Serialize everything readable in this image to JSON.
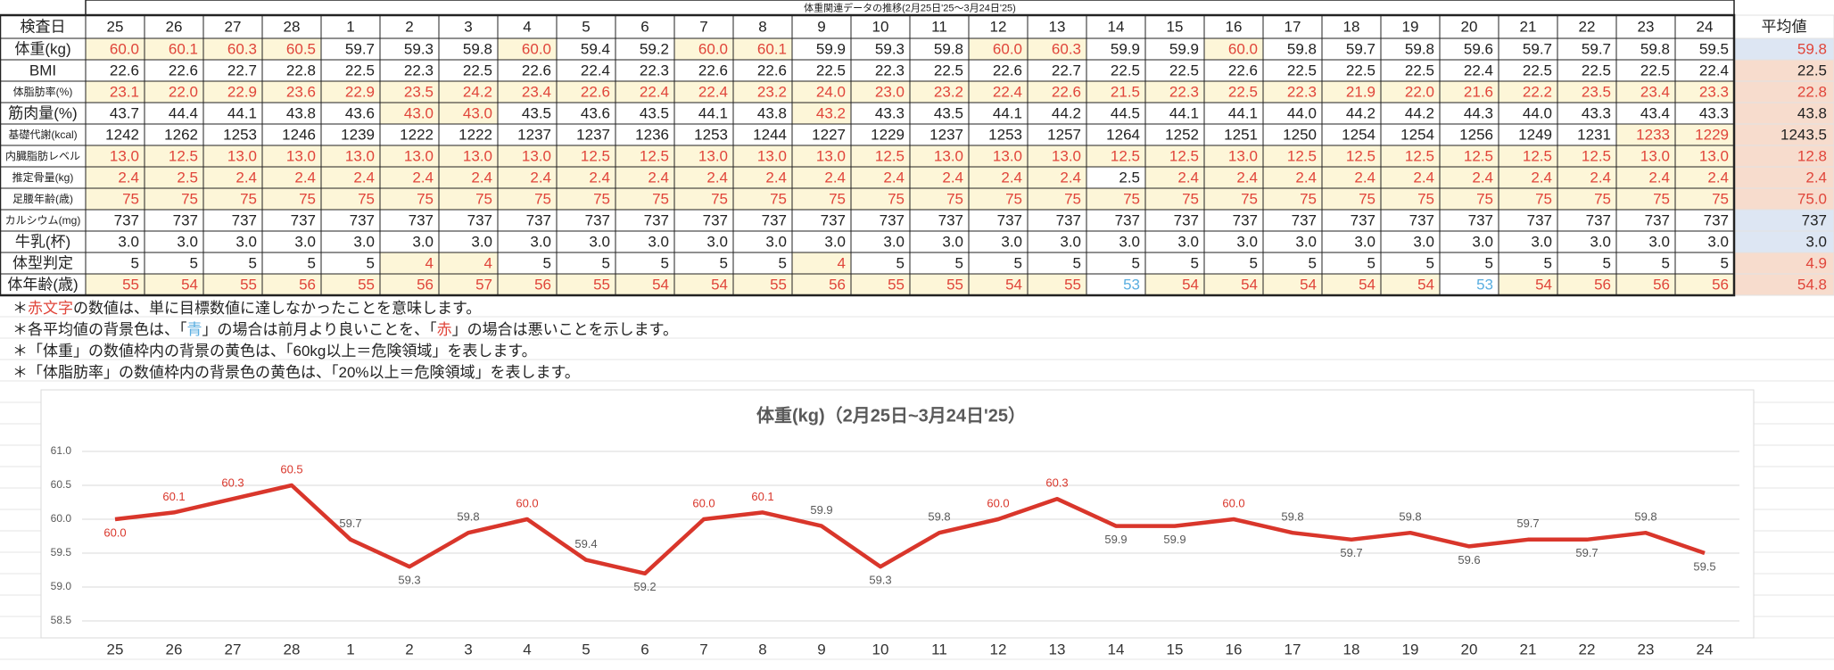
{
  "table": {
    "title": "体重関連データの推移(2月25日'25〜3月24日'25)",
    "header": {
      "label": "検査日",
      "dates": [
        "25",
        "26",
        "27",
        "28",
        "1",
        "2",
        "3",
        "4",
        "5",
        "6",
        "7",
        "8",
        "9",
        "10",
        "11",
        "12",
        "13",
        "14",
        "15",
        "16",
        "17",
        "18",
        "19",
        "20",
        "21",
        "22",
        "23",
        "24"
      ],
      "average": "平均値"
    },
    "highlight_color": "#e0453a",
    "highlight_fill": "#fdf6d8",
    "blue_color": "#5aaee0",
    "rows": [
      {
        "label": "体重(kg)",
        "values": [
          "60.0",
          "60.1",
          "60.3",
          "60.5",
          "59.7",
          "59.3",
          "59.8",
          "60.0",
          "59.4",
          "59.2",
          "60.0",
          "60.1",
          "59.9",
          "59.3",
          "59.8",
          "60.0",
          "60.3",
          "59.9",
          "59.9",
          "60.0",
          "59.8",
          "59.7",
          "59.8",
          "59.6",
          "59.7",
          "59.7",
          "59.8",
          "59.5"
        ],
        "average": "59.8",
        "average_fill": "#dde6f3",
        "average_color": "#e0453a",
        "highlight_cells": [
          0,
          1,
          2,
          3,
          7,
          10,
          11,
          15,
          16,
          19
        ],
        "blue_cells": []
      },
      {
        "label": "BMI",
        "values": [
          "22.6",
          "22.6",
          "22.7",
          "22.8",
          "22.5",
          "22.3",
          "22.5",
          "22.6",
          "22.4",
          "22.3",
          "22.6",
          "22.6",
          "22.5",
          "22.3",
          "22.5",
          "22.6",
          "22.7",
          "22.5",
          "22.5",
          "22.6",
          "22.5",
          "22.5",
          "22.5",
          "22.4",
          "22.5",
          "22.5",
          "22.5",
          "22.4"
        ],
        "average": "22.5",
        "average_fill": "#f7dccd",
        "average_color": "#222222",
        "highlight_cells": [],
        "blue_cells": []
      },
      {
        "label": "体脂肪率(%)",
        "values": [
          "23.1",
          "22.0",
          "22.9",
          "23.6",
          "22.9",
          "23.5",
          "24.2",
          "23.4",
          "22.6",
          "22.4",
          "22.4",
          "23.2",
          "24.0",
          "23.0",
          "23.2",
          "22.4",
          "22.6",
          "21.5",
          "22.3",
          "22.5",
          "22.3",
          "21.9",
          "22.0",
          "21.6",
          "22.2",
          "23.5",
          "23.4",
          "23.3"
        ],
        "average": "22.8",
        "average_fill": "#f7dccd",
        "average_color": "#e0453a",
        "highlight_cells": [
          0,
          1,
          2,
          3,
          4,
          5,
          6,
          7,
          8,
          9,
          10,
          11,
          12,
          13,
          14,
          15,
          16,
          17,
          18,
          19,
          20,
          21,
          22,
          23,
          24,
          25,
          26,
          27
        ],
        "blue_cells": []
      },
      {
        "label": "筋肉量(%)",
        "values": [
          "43.7",
          "44.4",
          "44.1",
          "43.8",
          "43.6",
          "43.0",
          "43.0",
          "43.5",
          "43.6",
          "43.5",
          "44.1",
          "43.8",
          "43.2",
          "43.3",
          "43.5",
          "44.1",
          "44.2",
          "44.5",
          "44.1",
          "44.1",
          "44.0",
          "44.2",
          "44.2",
          "44.3",
          "44.0",
          "43.3",
          "43.4",
          "43.3"
        ],
        "average": "43.8",
        "average_fill": "#f7dccd",
        "average_color": "#222222",
        "highlight_cells": [
          5,
          6,
          12
        ],
        "blue_cells": []
      },
      {
        "label": "基礎代謝(kcal)",
        "values": [
          "1242",
          "1262",
          "1253",
          "1246",
          "1239",
          "1222",
          "1222",
          "1237",
          "1237",
          "1236",
          "1253",
          "1244",
          "1227",
          "1229",
          "1237",
          "1253",
          "1257",
          "1264",
          "1252",
          "1251",
          "1250",
          "1254",
          "1254",
          "1256",
          "1249",
          "1231",
          "1233",
          "1229"
        ],
        "average": "1243.5",
        "average_fill": "#f7dccd",
        "average_color": "#222222",
        "highlight_cells": [
          26,
          27
        ],
        "blue_cells": []
      },
      {
        "label": "内臓脂肪レベル",
        "values": [
          "13.0",
          "12.5",
          "13.0",
          "13.0",
          "13.0",
          "13.0",
          "13.0",
          "13.0",
          "12.5",
          "12.5",
          "13.0",
          "13.0",
          "13.0",
          "12.5",
          "13.0",
          "13.0",
          "13.0",
          "12.5",
          "12.5",
          "13.0",
          "12.5",
          "12.5",
          "12.5",
          "12.5",
          "12.5",
          "12.5",
          "13.0",
          "13.0"
        ],
        "average": "12.8",
        "average_fill": "#f7dccd",
        "average_color": "#e0453a",
        "highlight_cells": [
          0,
          1,
          2,
          3,
          4,
          5,
          6,
          7,
          8,
          9,
          10,
          11,
          12,
          13,
          14,
          15,
          16,
          17,
          18,
          19,
          20,
          21,
          22,
          23,
          24,
          25,
          26,
          27
        ],
        "blue_cells": []
      },
      {
        "label": "推定骨量(kg)",
        "values": [
          "2.4",
          "2.5",
          "2.4",
          "2.4",
          "2.4",
          "2.4",
          "2.4",
          "2.4",
          "2.4",
          "2.4",
          "2.4",
          "2.4",
          "2.4",
          "2.4",
          "2.4",
          "2.4",
          "2.4",
          "2.5",
          "2.4",
          "2.4",
          "2.4",
          "2.4",
          "2.4",
          "2.4",
          "2.4",
          "2.4",
          "2.4",
          "2.4"
        ],
        "average": "2.4",
        "average_fill": "#f7dccd",
        "average_color": "#e0453a",
        "highlight_cells": [
          0,
          1,
          2,
          3,
          4,
          5,
          6,
          7,
          8,
          9,
          10,
          11,
          12,
          13,
          14,
          15,
          16,
          18,
          19,
          20,
          21,
          22,
          23,
          24,
          25,
          26,
          27
        ],
        "blue_cells": []
      },
      {
        "label": "足腰年齢(歳)",
        "values": [
          "75",
          "75",
          "75",
          "75",
          "75",
          "75",
          "75",
          "75",
          "75",
          "75",
          "75",
          "75",
          "75",
          "75",
          "75",
          "75",
          "75",
          "75",
          "75",
          "75",
          "75",
          "75",
          "75",
          "75",
          "75",
          "75",
          "75",
          "75"
        ],
        "average": "75.0",
        "average_fill": "#f7dccd",
        "average_color": "#e0453a",
        "highlight_cells": [
          0,
          1,
          2,
          3,
          4,
          5,
          6,
          7,
          8,
          9,
          10,
          11,
          12,
          13,
          14,
          15,
          16,
          17,
          18,
          19,
          20,
          21,
          22,
          23,
          24,
          25,
          26,
          27
        ],
        "blue_cells": []
      },
      {
        "label": "カルシウム(mg)",
        "values": [
          "737",
          "737",
          "737",
          "737",
          "737",
          "737",
          "737",
          "737",
          "737",
          "737",
          "737",
          "737",
          "737",
          "737",
          "737",
          "737",
          "737",
          "737",
          "737",
          "737",
          "737",
          "737",
          "737",
          "737",
          "737",
          "737",
          "737",
          "737"
        ],
        "average": "737",
        "average_fill": "#dde6f3",
        "average_color": "#222222",
        "highlight_cells": [],
        "blue_cells": []
      },
      {
        "label": "牛乳(杯)",
        "values": [
          "3.0",
          "3.0",
          "3.0",
          "3.0",
          "3.0",
          "3.0",
          "3.0",
          "3.0",
          "3.0",
          "3.0",
          "3.0",
          "3.0",
          "3.0",
          "3.0",
          "3.0",
          "3.0",
          "3.0",
          "3.0",
          "3.0",
          "3.0",
          "3.0",
          "3.0",
          "3.0",
          "3.0",
          "3.0",
          "3.0",
          "3.0",
          "3.0"
        ],
        "average": "3.0",
        "average_fill": "#dde6f3",
        "average_color": "#222222",
        "highlight_cells": [],
        "blue_cells": []
      },
      {
        "label": "体型判定",
        "values": [
          "5",
          "5",
          "5",
          "5",
          "5",
          "4",
          "4",
          "5",
          "5",
          "5",
          "5",
          "5",
          "4",
          "5",
          "5",
          "5",
          "5",
          "5",
          "5",
          "5",
          "5",
          "5",
          "5",
          "5",
          "5",
          "5",
          "5",
          "5"
        ],
        "average": "4.9",
        "average_fill": "#f7dccd",
        "average_color": "#e0453a",
        "highlight_cells": [
          5,
          6,
          12
        ],
        "blue_cells": []
      },
      {
        "label": "体年齢(歳)",
        "values": [
          "55",
          "54",
          "55",
          "56",
          "55",
          "56",
          "57",
          "56",
          "55",
          "54",
          "54",
          "55",
          "56",
          "55",
          "55",
          "54",
          "55",
          "53",
          "54",
          "54",
          "54",
          "54",
          "54",
          "53",
          "54",
          "56",
          "56",
          "56"
        ],
        "average": "54.8",
        "average_fill": "#f7dccd",
        "average_color": "#e0453a",
        "highlight_cells": [
          0,
          1,
          2,
          3,
          4,
          5,
          6,
          7,
          8,
          9,
          10,
          11,
          12,
          13,
          14,
          15,
          16,
          18,
          19,
          20,
          21,
          22,
          24,
          25,
          26,
          27
        ],
        "blue_cells": [
          17,
          23
        ]
      }
    ]
  },
  "notes": [
    [
      {
        "text": "＊"
      },
      {
        "text": "赤文字",
        "color": "#e0453a"
      },
      {
        "text": "の数値は、単に目標数値に達しなかったことを意味します。"
      }
    ],
    [
      {
        "text": "＊各平均値の背景色は、「"
      },
      {
        "text": "青",
        "color": "#5aaee0"
      },
      {
        "text": "」の場合は前月より良いことを、「"
      },
      {
        "text": "赤",
        "color": "#e0453a"
      },
      {
        "text": "」の場合は悪いことを示します。"
      }
    ],
    [
      {
        "text": "＊「体重」の数値枠内の背景の黄色は、「60kg以上＝危険領域」を表します。"
      }
    ],
    [
      {
        "text": "＊「体脂肪率」の数値枠内の背景色の黄色は、「20%以上＝危険領域」を表します。"
      }
    ]
  ],
  "chart_data": {
    "type": "line",
    "title": "体重(kg)（2月25日~3月24日'25）",
    "categories": [
      "25",
      "26",
      "27",
      "28",
      "1",
      "2",
      "3",
      "4",
      "5",
      "6",
      "7",
      "8",
      "9",
      "10",
      "11",
      "12",
      "13",
      "14",
      "15",
      "16",
      "17",
      "18",
      "19",
      "20",
      "21",
      "22",
      "23",
      "24"
    ],
    "values": [
      60,
      60.1,
      60.3,
      60.5,
      59.7,
      59.3,
      59.8,
      60,
      59.4,
      59.2,
      60,
      60.1,
      59.9,
      59.3,
      59.8,
      60,
      60.3,
      59.9,
      59.9,
      60,
      59.8,
      59.7,
      59.8,
      59.6,
      59.7,
      59.7,
      59.8,
      59.5
    ],
    "value_labels": [
      "60.0",
      "60.1",
      "60.3",
      "60.5",
      "59.7",
      "59.3",
      "59.8",
      "60.0",
      "59.4",
      "59.2",
      "60.0",
      "60.1",
      "59.9",
      "59.3",
      "59.8",
      "60.0",
      "60.3",
      "59.9",
      "59.9",
      "60.0",
      "59.8",
      "59.7",
      "59.8",
      "59.6",
      "59.7",
      "59.7",
      "59.8",
      "59.5"
    ],
    "color": "#d9362b",
    "label_color": "#595959",
    "highlight_points": [
      0,
      1,
      2,
      3,
      7,
      10,
      11,
      15,
      16,
      19
    ],
    "ylim": [
      58.5,
      61
    ],
    "yticks": [
      58.5,
      {
        "value": 59,
        "label": "59.0"
      },
      59.5,
      {
        "value": 60,
        "label": "60.0"
      },
      60.5,
      {
        "value": 61,
        "label": "61.0"
      }
    ],
    "grid": true
  }
}
